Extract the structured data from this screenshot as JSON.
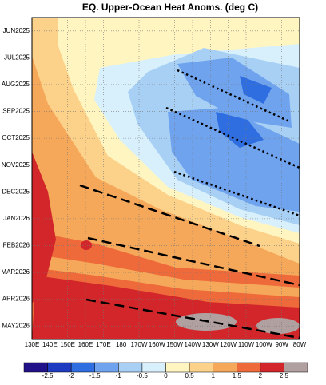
{
  "chart_data": {
    "type": "contour",
    "title": "EQ. Upper-Ocean Heat Anoms. (deg C)",
    "categories": [
      "JUN2025",
      "JUL2025",
      "AUG2025",
      "SEP2025",
      "OCT2025",
      "NOV2025",
      "DEC2025",
      "JAN2026",
      "FEB2026",
      "MAR2026",
      "APR2026",
      "MAY2026"
    ],
    "xlim": [
      130,
      280
    ],
    "xticks": [
      {
        "value": 130,
        "label": "130E"
      },
      {
        "value": 140,
        "label": "140E"
      },
      {
        "value": 150,
        "label": "150E"
      },
      {
        "value": 160,
        "label": "160E"
      },
      {
        "value": 170,
        "label": "170E"
      },
      180,
      {
        "value": 190,
        "label": "170W"
      },
      {
        "value": 200,
        "label": "160W"
      },
      {
        "value": 210,
        "label": "150W"
      },
      {
        "value": 220,
        "label": "140W"
      },
      {
        "value": 230,
        "label": "130W"
      },
      {
        "value": 240,
        "label": "120W"
      },
      {
        "value": 250,
        "label": "110W"
      },
      {
        "value": 260,
        "label": "100W"
      },
      {
        "value": 270,
        "label": "90W"
      },
      {
        "value": 280,
        "label": "80W"
      }
    ],
    "grid": true,
    "levels": [
      -2.5,
      -2,
      -1.5,
      -1,
      -0.5,
      0,
      0.5,
      1,
      1.5,
      2,
      2.5
    ],
    "colors": [
      "#22128a",
      "#1e3ac0",
      "#2f6ee0",
      "#6fa3ee",
      "#a8d0f5",
      "#d8f0fc",
      "#fff5c0",
      "#fcd28a",
      "#f5a85a",
      "#ef6a3a",
      "#d2262a",
      "#b0a0a0"
    ]
  }
}
